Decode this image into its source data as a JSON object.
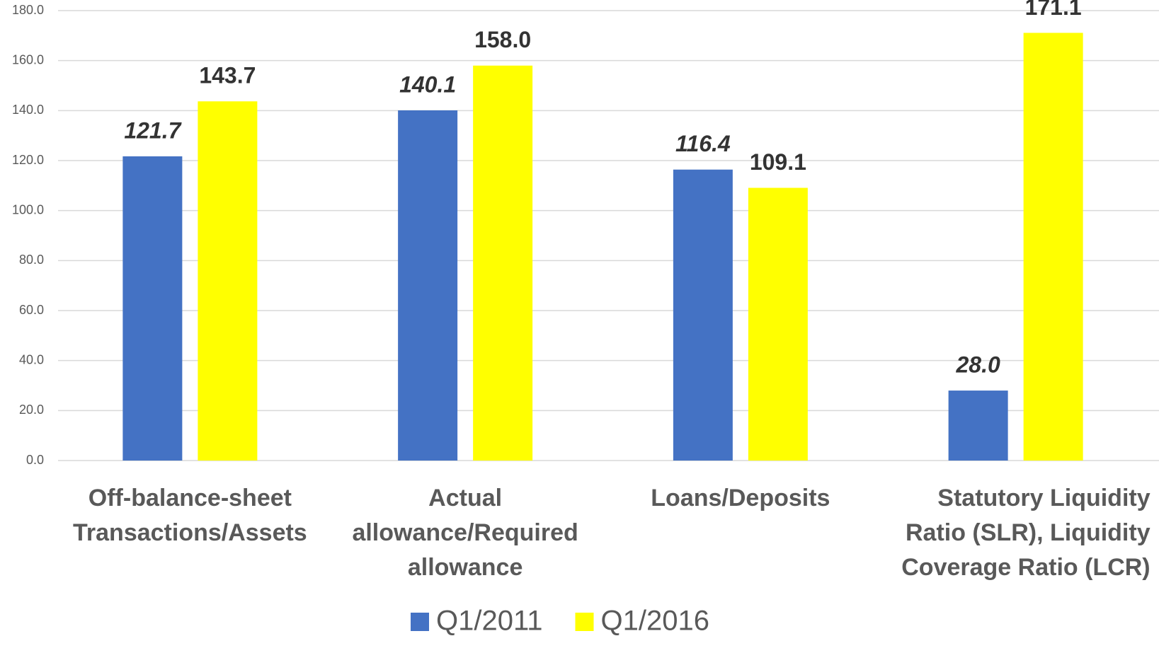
{
  "chart_data": {
    "type": "bar",
    "categories": [
      "Off-balance-sheet Transactions/Assets",
      "Actual allowance/Required allowance",
      "Loans/Deposits",
      "Statutory Liquidity Ratio (SLR), Liquidity Coverage Ratio (LCR)"
    ],
    "series": [
      {
        "name": "Q1/2011",
        "color": "#4472c4",
        "values": [
          121.7,
          140.1,
          116.4,
          28.0
        ],
        "value_labels": [
          "121.7",
          "140.1",
          "116.4",
          "28.0"
        ]
      },
      {
        "name": "Q1/2016",
        "color": "#ffff00",
        "values": [
          143.7,
          158.0,
          109.1,
          171.1
        ],
        "value_labels": [
          "143.7",
          "158.0",
          "109.1",
          "171.1"
        ]
      }
    ],
    "ylim": [
      0,
      180
    ],
    "yticks": [
      {
        "value": 0,
        "label": "0.0"
      },
      {
        "value": 20,
        "label": "20.0"
      },
      {
        "value": 40,
        "label": "40.0"
      },
      {
        "value": 60,
        "label": "60.0"
      },
      {
        "value": 80,
        "label": "80.0"
      },
      {
        "value": 100,
        "label": "100.0"
      },
      {
        "value": 120,
        "label": "120.0"
      },
      {
        "value": 140,
        "label": "140.0"
      },
      {
        "value": 160,
        "label": "160.0"
      },
      {
        "value": 180,
        "label": "180.0"
      }
    ],
    "grid": true,
    "legend": "bottom"
  }
}
